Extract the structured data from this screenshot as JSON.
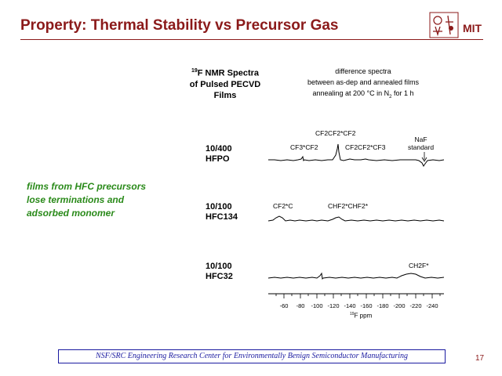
{
  "slide": {
    "title": "Property: Thermal Stability vs Precursor Gas",
    "logo_text": "MIT",
    "page_number": "17",
    "footer": "NSF/SRC Engineering Research Center for Environmentally Benign Semiconductor Manufacturing"
  },
  "headers": {
    "left_sup": "19",
    "left_line1": "F NMR Spectra",
    "left_line2": "of Pulsed PECVD",
    "left_line3": "Films",
    "right_line1": "difference spectra",
    "right_line2": "between as-dep and annealed films",
    "right_line3": "annealing at 200 °C in N",
    "right_sub": "2",
    "right_tail": " for 1 h"
  },
  "samples": [
    {
      "line1": "10/400",
      "line2": "HFPO"
    },
    {
      "line1": "10/100",
      "line2": "HFC134"
    },
    {
      "line1": "10/100",
      "line2": "HFC32"
    }
  ],
  "note": {
    "line1": "films from HFC precursors",
    "line2": "lose terminations and",
    "line3": "adsorbed monomer"
  },
  "peaks": {
    "cf2cf2cf2": "CF2CF2*CF2",
    "cf3cf2": "CF3*CF2",
    "cf2cf2cf3": "CF2CF2*CF3",
    "naf_line1": "NaF",
    "naf_line2": "standard",
    "cf2c": "CF2*C",
    "chf2chf2": "CHF2*CHF2*",
    "ch2f": "CH2F*"
  },
  "axis": {
    "ticks": [
      "-60",
      "-80",
      "-100",
      "-120",
      "-140",
      "-160",
      "-180",
      "-200",
      "-220",
      "-240"
    ],
    "unit_sup": "19",
    "unit": "F ppm"
  },
  "colors": {
    "title": "#8b1a1a",
    "note": "#2a8a1a",
    "footer": "#1a1aa0"
  }
}
